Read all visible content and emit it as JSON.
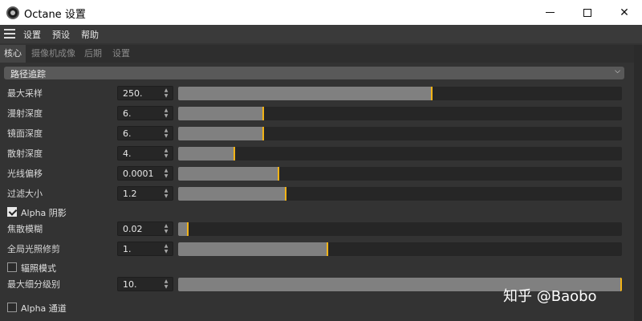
{
  "window": {
    "title": "Octane 设置"
  },
  "menu": {
    "items": [
      "设置",
      "预设",
      "帮助"
    ]
  },
  "tabs": [
    {
      "label": "核心",
      "active": true
    },
    {
      "label": "摄像机成像",
      "active": false
    },
    {
      "label": "后期",
      "active": false
    },
    {
      "label": "设置",
      "active": false
    }
  ],
  "section": {
    "title": "路径追踪"
  },
  "params": [
    {
      "label": "最大采样",
      "value": "250.",
      "fraction": 0.57
    },
    {
      "label": "漫射深度",
      "value": "6.",
      "fraction": 0.19
    },
    {
      "label": "镜面深度",
      "value": "6.",
      "fraction": 0.19
    },
    {
      "label": "散射深度",
      "value": "4.",
      "fraction": 0.125
    },
    {
      "label": "光线偏移",
      "value": "0.0001",
      "fraction": 0.225
    },
    {
      "label": "过滤大小",
      "value": "1.2",
      "fraction": 0.24
    },
    {
      "label": "焦散模糊",
      "value": "0.02",
      "fraction": 0.02
    },
    {
      "label": "全局光照修剪",
      "value": "1.",
      "fraction": 0.335
    },
    {
      "label": "最大细分级别",
      "value": "10.",
      "fraction": 1.0
    }
  ],
  "checkboxes": {
    "alpha_shadow": {
      "label": "Alpha 阴影",
      "checked": true
    },
    "radiance_mode": {
      "label": "辐照模式",
      "checked": false
    },
    "alpha_channel": {
      "label": "Alpha 通道",
      "checked": false
    }
  },
  "watermark": {
    "text": "知乎 @Baobo"
  },
  "colors": {
    "slider_handle": "#f2b316",
    "slider_fill": "#808080",
    "panel_bg": "#333333"
  }
}
